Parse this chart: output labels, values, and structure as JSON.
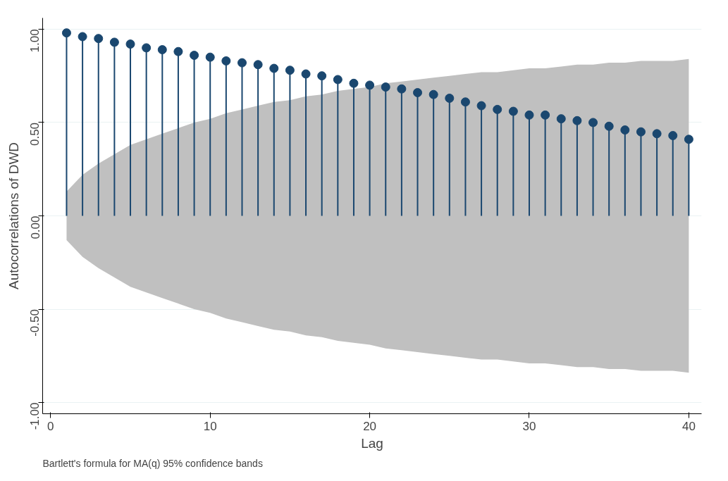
{
  "chart_data": {
    "type": "lollipop",
    "xlabel": "Lag",
    "ylabel": "Autocorrelations of DWD",
    "annotations": [
      "Bartlett's formula for MA(q) 95% confidence bands"
    ],
    "xlim": [
      -0.5,
      40.8
    ],
    "xticks": [
      0,
      10,
      20,
      30,
      40
    ],
    "ylim": [
      -1.06,
      1.06
    ],
    "yticks": [
      {
        "value": -1,
        "label": "-1.00"
      },
      {
        "value": -0.5,
        "label": "-0.50"
      },
      {
        "value": 0,
        "label": "0.00"
      },
      {
        "value": 0.5,
        "label": "0.50"
      },
      {
        "value": 1,
        "label": "1.00"
      }
    ],
    "grid": "y",
    "marker": "circle",
    "series": [
      {
        "color": "#1a476f",
        "x": [
          1,
          2,
          3,
          4,
          5,
          6,
          7,
          8,
          9,
          10,
          11,
          12,
          13,
          14,
          15,
          16,
          17,
          18,
          19,
          20,
          21,
          22,
          23,
          24,
          25,
          26,
          27,
          28,
          29,
          30,
          31,
          32,
          33,
          34,
          35,
          36,
          37,
          38,
          39,
          40
        ],
        "values": [
          0.98,
          0.96,
          0.95,
          0.93,
          0.92,
          0.9,
          0.89,
          0.88,
          0.86,
          0.85,
          0.83,
          0.82,
          0.81,
          0.79,
          0.78,
          0.76,
          0.75,
          0.73,
          0.71,
          0.7,
          0.69,
          0.68,
          0.66,
          0.65,
          0.63,
          0.61,
          0.59,
          0.57,
          0.56,
          0.54,
          0.54,
          0.52,
          0.51,
          0.5,
          0.48,
          0.46,
          0.45,
          0.44,
          0.43,
          0.41
        ],
        "lower": [
          -0.13,
          -0.22,
          -0.28,
          -0.33,
          -0.38,
          -0.41,
          -0.44,
          -0.47,
          -0.5,
          -0.52,
          -0.55,
          -0.57,
          -0.59,
          -0.61,
          -0.62,
          -0.64,
          -0.65,
          -0.67,
          -0.68,
          -0.69,
          -0.71,
          -0.72,
          -0.73,
          -0.74,
          -0.75,
          -0.76,
          -0.77,
          -0.77,
          -0.78,
          -0.79,
          -0.79,
          -0.8,
          -0.81,
          -0.81,
          -0.82,
          -0.82,
          -0.83,
          -0.83,
          -0.83,
          -0.84
        ],
        "upper": [
          0.13,
          0.22,
          0.28,
          0.33,
          0.38,
          0.41,
          0.44,
          0.47,
          0.5,
          0.52,
          0.55,
          0.57,
          0.59,
          0.61,
          0.62,
          0.64,
          0.65,
          0.67,
          0.68,
          0.69,
          0.71,
          0.72,
          0.73,
          0.74,
          0.75,
          0.76,
          0.77,
          0.77,
          0.78,
          0.79,
          0.79,
          0.8,
          0.81,
          0.81,
          0.82,
          0.82,
          0.83,
          0.83,
          0.83,
          0.84
        ]
      }
    ]
  }
}
